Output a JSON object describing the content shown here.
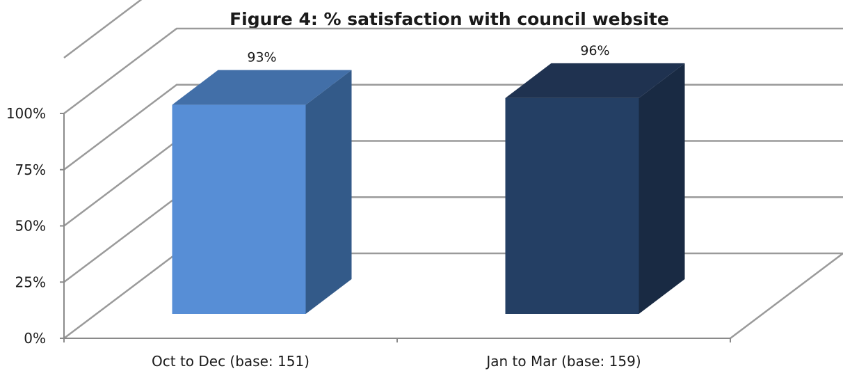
{
  "chart_data": {
    "type": "bar",
    "title": "Figure 4: % satisfaction with council website",
    "categories": [
      "Oct to Dec (base: 151)",
      "Jan to Mar (base: 159)"
    ],
    "values": [
      93,
      96
    ],
    "data_labels": [
      "93%",
      "96%"
    ],
    "yticks": [
      "0%",
      "25%",
      "50%",
      "75%",
      "100%"
    ],
    "ylim": [
      0,
      100
    ],
    "grid": true,
    "legend": "none",
    "style": "3d-column",
    "bar_colors": [
      {
        "front": "#578ed6",
        "top": "#426fa8",
        "side": "#335a89"
      },
      {
        "front": "#243f64",
        "top": "#1f3250",
        "side": "#192a43"
      }
    ]
  }
}
